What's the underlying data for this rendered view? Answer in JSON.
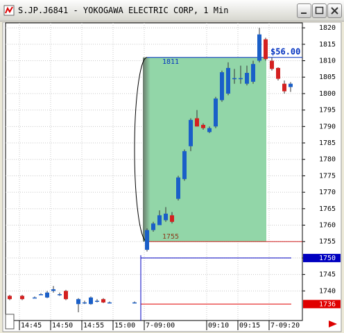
{
  "chart_data": {
    "type": "candlestick",
    "title": "S.JP.J6841 - YOKOGAWA ELECTRIC CORP, 1 Min",
    "categories": [
      null,
      null,
      "14:45",
      null,
      null,
      null,
      null,
      "14:50",
      null,
      null,
      null,
      null,
      "14:55",
      null,
      null,
      null,
      null,
      "15:00",
      null,
      null,
      null,
      null,
      "7-09:00",
      null,
      null,
      null,
      null,
      null,
      null,
      null,
      null,
      null,
      "09:10",
      null,
      null,
      null,
      null,
      "09:15",
      null,
      null,
      null,
      null,
      "7-09:20",
      null,
      null,
      null
    ],
    "series": [
      {
        "open": [
          1738.5,
          null,
          1738.5,
          null,
          1738,
          1739,
          1738,
          1740,
          1739,
          1740,
          null,
          1736,
          1736.5,
          1736,
          1737,
          1737.5,
          1736.5,
          null,
          null,
          null,
          1736.5,
          null,
          1752.5,
          1758.5,
          1760,
          1761.5,
          1763,
          1768,
          1774,
          1784,
          1792.5,
          1790.5,
          1788.3,
          1790,
          1798,
          1800,
          1804.7,
          1804.7,
          1803,
          1803.6,
          1810,
          1816.5,
          1810,
          1807.8,
          1803,
          1802
        ],
        "high": [
          1738.8,
          null,
          1738.8,
          null,
          1738.3,
          1739.3,
          1740,
          1741.5,
          1739.5,
          1740.3,
          null,
          1737.8,
          1737,
          1738.3,
          1737.5,
          1737.8,
          1736.8,
          null,
          null,
          null,
          1736.8,
          null,
          1759,
          1761,
          1764.5,
          1765.5,
          1764,
          1775,
          1783,
          1792.5,
          1795,
          1791,
          1790,
          1799,
          1807,
          1809.5,
          1807.5,
          1808.5,
          1808.5,
          1810,
          1820,
          1817,
          1811,
          1808,
          1804,
          1803.5
        ],
        "low": [
          1737.2,
          null,
          1737.2,
          null,
          1737.8,
          1738.8,
          1737.8,
          1739.5,
          1738.5,
          1737.2,
          null,
          1733.5,
          1736,
          1735.8,
          1736.5,
          1736.3,
          1736.2,
          null,
          null,
          null,
          1736.2,
          null,
          1752,
          1758,
          1760,
          1761,
          1760.5,
          1767.5,
          1773.5,
          1782.5,
          1790,
          1789,
          1788,
          1789.5,
          1797.5,
          1799.5,
          1803,
          1803,
          1802.5,
          1803,
          1809.5,
          1810,
          1807,
          1804,
          1800,
          1800.5
        ],
        "close": [
          1737.5,
          null,
          1737.5,
          null,
          1738,
          1739,
          1739.5,
          1740.5,
          1739,
          1737.5,
          null,
          1737.5,
          1736.5,
          1738,
          1737,
          1736.5,
          1736.5,
          null,
          null,
          null,
          1736.5,
          null,
          1758.5,
          1760.5,
          1763,
          1763.5,
          1761,
          1774.5,
          1782.5,
          1792,
          1790,
          1789.5,
          1789.5,
          1798.5,
          1806.5,
          1807.8,
          1804.7,
          1804.7,
          1806.3,
          1809,
          1818,
          1810.5,
          1807.5,
          1804.5,
          1800.7,
          1803
        ]
      }
    ],
    "up_color": "#1a5fc8",
    "down_color": "#d42020",
    "ylim": [
      1731,
      1821.5
    ],
    "yticks": [
      1820,
      1815,
      1810,
      1805,
      1800,
      1795,
      1790,
      1785,
      1780,
      1775,
      1770,
      1765,
      1760,
      1755,
      1750,
      1745,
      1740
    ],
    "grid": true,
    "measure": {
      "top": 1811,
      "bottom": 1755,
      "difference": {
        "value": 56,
        "label": "$56.00"
      }
    },
    "price_lines": [
      {
        "value": 1750,
        "color": "#0000c0"
      },
      {
        "value": 1736,
        "color": "#e00000"
      }
    ]
  }
}
